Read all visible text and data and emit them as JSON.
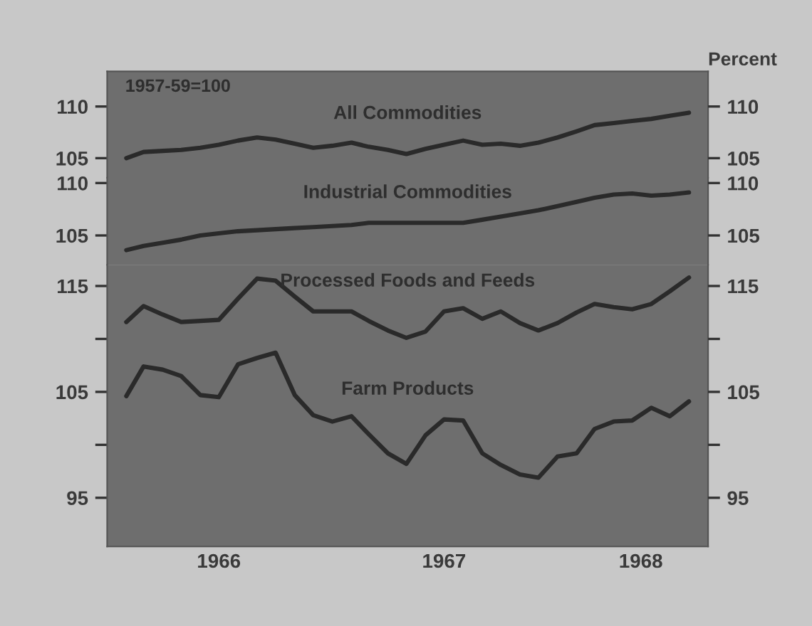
{
  "chart_data": [
    {
      "type": "line",
      "annotations": [
        "1957-59=100",
        "Percent"
      ],
      "tick_labels": "y",
      "x": [
        "1966-02",
        "1966-03",
        "1966-04",
        "1966-05",
        "1966-06",
        "1966-07",
        "1966-08",
        "1966-09",
        "1966-10",
        "1966-11",
        "1966-12",
        "1967-01",
        "1967-02",
        "1967-03",
        "1967-04",
        "1967-05",
        "1967-06",
        "1967-07",
        "1967-08",
        "1967-09",
        "1967-10",
        "1967-11",
        "1967-12",
        "1968-01",
        "1968-02",
        "1968-03",
        "1968-04",
        "1968-05",
        "1968-06",
        "1968-07",
        "1968-08"
      ],
      "xlim": [
        "1966-01",
        "1968-09"
      ],
      "series": [
        {
          "name": "All Commodities",
          "color": "#2a2a2a",
          "values": [
            105.0,
            105.6,
            105.7,
            105.8,
            106.0,
            106.3,
            106.7,
            107.0,
            106.8,
            106.4,
            106.0,
            106.2,
            106.5,
            106.1,
            105.8,
            105.4,
            105.9,
            106.3,
            106.7,
            106.3,
            106.4,
            106.2,
            106.5,
            107.0,
            107.6,
            108.2,
            108.4,
            108.6,
            108.8,
            109.1,
            109.4
          ]
        }
      ],
      "ylim": [
        103.1,
        113.4
      ],
      "yticks": [
        110,
        105
      ],
      "y2lim": [
        103.1,
        113.4
      ],
      "y2ticks": [
        110,
        105
      ]
    },
    {
      "type": "line",
      "tick_labels": "y",
      "x": [
        "1966-02",
        "1966-03",
        "1966-04",
        "1966-05",
        "1966-06",
        "1966-07",
        "1966-08",
        "1966-09",
        "1966-10",
        "1966-11",
        "1966-12",
        "1967-01",
        "1967-02",
        "1967-03",
        "1967-04",
        "1967-05",
        "1967-06",
        "1967-07",
        "1967-08",
        "1967-09",
        "1967-10",
        "1967-11",
        "1967-12",
        "1968-01",
        "1968-02",
        "1968-03",
        "1968-04",
        "1968-05",
        "1968-06",
        "1968-07",
        "1968-08"
      ],
      "xlim": [
        "1966-01",
        "1968-09"
      ],
      "series": [
        {
          "name": "Industrial Commodities",
          "color": "#2a2a2a",
          "values": [
            103.6,
            104.0,
            104.3,
            104.6,
            105.0,
            105.2,
            105.4,
            105.5,
            105.6,
            105.7,
            105.8,
            105.9,
            106.0,
            106.2,
            106.2,
            106.2,
            106.2,
            106.2,
            106.2,
            106.5,
            106.8,
            107.1,
            107.4,
            107.8,
            108.2,
            108.6,
            108.9,
            109.0,
            108.8,
            108.9,
            109.1
          ]
        }
      ],
      "ylim": [
        102.2,
        110.5
      ],
      "yticks": [
        110,
        105
      ],
      "y2lim": [
        102.2,
        110.5
      ],
      "y2ticks": [
        110,
        105
      ]
    },
    {
      "type": "line",
      "x": [
        "1966-02",
        "1966-03",
        "1966-04",
        "1966-05",
        "1966-06",
        "1966-07",
        "1966-08",
        "1966-09",
        "1966-10",
        "1966-11",
        "1966-12",
        "1967-01",
        "1967-02",
        "1967-03",
        "1967-04",
        "1967-05",
        "1967-06",
        "1967-07",
        "1967-08",
        "1967-09",
        "1967-10",
        "1967-11",
        "1967-12",
        "1968-01",
        "1968-02",
        "1968-03",
        "1968-04",
        "1968-05",
        "1968-06",
        "1968-07",
        "1968-08"
      ],
      "xlim": [
        "1966-01",
        "1968-09"
      ],
      "xticks": [
        {
          "value": "1966-07-01",
          "label": "1966"
        },
        {
          "value": "1967-07-01",
          "label": "1967"
        },
        {
          "value": "1968-05-15",
          "label": "1968"
        }
      ],
      "series": [
        {
          "name": "Processed Foods and Feeds",
          "color": "#2a2a2a",
          "values": [
            111.6,
            113.1,
            112.3,
            111.6,
            111.7,
            111.8,
            113.8,
            115.7,
            115.5,
            114.0,
            112.6,
            112.6,
            112.6,
            111.7,
            110.8,
            110.1,
            110.7,
            112.6,
            112.9,
            111.9,
            112.6,
            111.5,
            110.8,
            111.5,
            112.5,
            113.3,
            113.0,
            112.8,
            113.3,
            114.5,
            115.8
          ]
        },
        {
          "name": "Farm Products",
          "color": "#2a2a2a",
          "values": [
            104.6,
            107.4,
            107.1,
            106.5,
            104.7,
            104.5,
            107.6,
            108.2,
            108.7,
            104.7,
            102.8,
            102.2,
            102.7,
            101.0,
            99.2,
            98.2,
            100.9,
            102.4,
            102.3,
            99.2,
            98.1,
            97.2,
            96.9,
            98.9,
            99.2,
            101.5,
            102.2,
            102.3,
            103.5,
            102.7,
            104.1
          ]
        }
      ],
      "ylim": [
        90.4,
        117.0
      ],
      "yticks": [
        115,
        {
          "value": 110,
          "label": null
        },
        105,
        {
          "value": 100,
          "label": null
        },
        95
      ],
      "y2lim": [
        90.4,
        117.0
      ],
      "y2ticks": [
        115,
        {
          "value": 110,
          "label": null
        },
        105,
        {
          "value": 100,
          "label": null
        },
        95
      ]
    }
  ]
}
